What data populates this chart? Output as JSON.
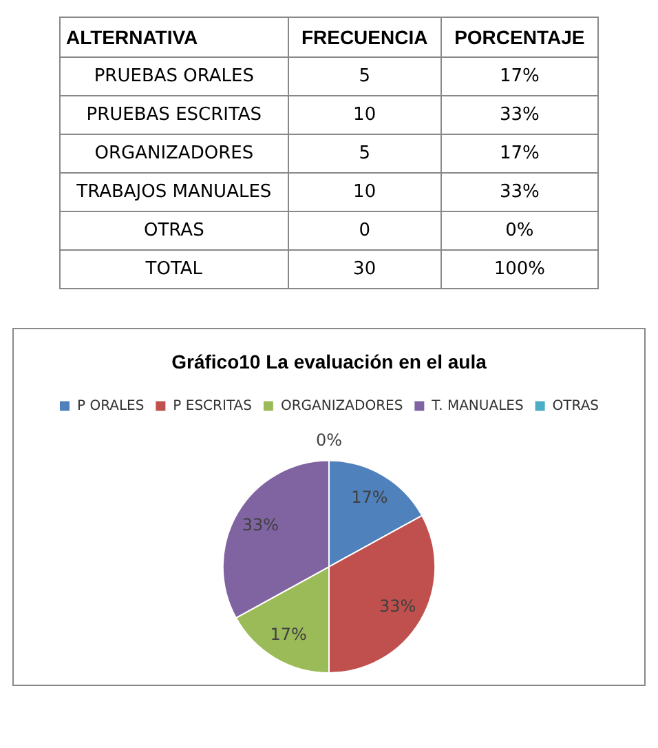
{
  "chart_data": [
    {
      "type": "other",
      "xlabel": "ALTERNATIVA",
      "categories": [
        "PRUEBAS ORALES",
        "PRUEBAS ESCRITAS",
        "ORGANIZADORES",
        "TRABAJOS MANUALES",
        "OTRAS",
        "TOTAL"
      ],
      "series": [
        {
          "name": "FRECUENCIA",
          "values": [
            5,
            10,
            5,
            10,
            0,
            30
          ]
        },
        {
          "name": "PORCENTAJE",
          "values": [
            17,
            33,
            17,
            33,
            0,
            100
          ],
          "value_labels": [
            "17%",
            "33%",
            "17%",
            "33%",
            "0%",
            "100%"
          ]
        }
      ],
      "data_labels": true
    },
    {
      "type": "pie",
      "title": "Gráfico10 La evaluación en el aula",
      "categories": [
        "P ORALES",
        "P ESCRITAS",
        "ORGANIZADORES",
        "T. MANUALES",
        "OTRAS"
      ],
      "values": [
        17,
        33,
        17,
        33,
        0
      ],
      "value_labels": [
        "17%",
        "33%",
        "17%",
        "33%",
        "0%"
      ],
      "colors": [
        "#4f81bd",
        "#c0504d",
        "#9bbb59",
        "#8064a2",
        "#4bacc6"
      ],
      "legend": "top"
    }
  ]
}
